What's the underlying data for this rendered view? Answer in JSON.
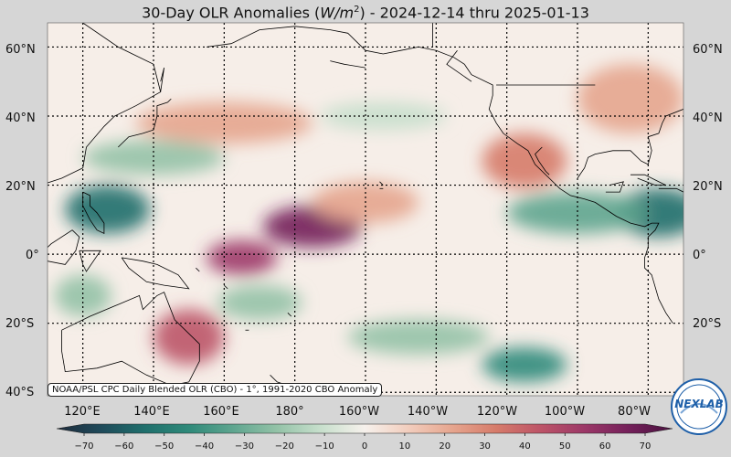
{
  "title": {
    "prefix": "30-Day OLR Anomalies (",
    "unit_base": "W/m",
    "unit_exp": "2",
    "suffix": ") - 2024-12-14 thru 2025-01-13"
  },
  "lat_labels": [
    "60°N",
    "40°N",
    "20°N",
    "0°",
    "20°S",
    "40°S"
  ],
  "lat_labels_right": [
    "60°N",
    "40°N",
    "20°N",
    "0°",
    "20°S"
  ],
  "lon_labels": [
    "120°E",
    "140°E",
    "160°E",
    "180°",
    "160°W",
    "140°W",
    "120°W",
    "100°W",
    "80°W"
  ],
  "source_note": "NOAA/PSL CPC Daily Blended OLR (CBO) - 1°, 1991-2020 CBO Anomaly",
  "logo_text": "NEXLAB",
  "colorbar": {
    "ticks": [
      "−70",
      "−60",
      "−50",
      "−40",
      "−30",
      "−20",
      "−10",
      "0",
      "10",
      "20",
      "30",
      "40",
      "50",
      "60",
      "70"
    ],
    "colors": [
      "#1e2b3c",
      "#1f4a5a",
      "#1f6f6c",
      "#2f8a7a",
      "#5ea58f",
      "#93c2a7",
      "#c7dfcc",
      "#f6f1ec",
      "#f2cdbd",
      "#e6a58e",
      "#d67b6a",
      "#bd5468",
      "#9c3868",
      "#74205a",
      "#4a1240"
    ]
  },
  "anomaly_regions": [
    {
      "lon": 185,
      "lat": 8,
      "rlon": 14,
      "rlat": 6,
      "value": 55
    },
    {
      "lon": 165,
      "lat": -1,
      "rlon": 10,
      "rlat": 5,
      "value": 50
    },
    {
      "lon": 150,
      "lat": -24,
      "rlon": 10,
      "rlat": 8,
      "value": 35
    },
    {
      "lon": 245,
      "lat": 27,
      "rlon": 12,
      "rlat": 8,
      "value": 30
    },
    {
      "lon": 160,
      "lat": 38,
      "rlon": 25,
      "rlat": 6,
      "value": 15
    },
    {
      "lon": 200,
      "lat": 15,
      "rlon": 15,
      "rlat": 6,
      "value": 15
    },
    {
      "lon": 275,
      "lat": 45,
      "rlon": 15,
      "rlat": 10,
      "value": 20
    },
    {
      "lon": 127,
      "lat": 13,
      "rlon": 12,
      "rlat": 7,
      "value": -50
    },
    {
      "lon": 283,
      "lat": 12,
      "rlon": 12,
      "rlat": 7,
      "value": -55
    },
    {
      "lon": 260,
      "lat": 12,
      "rlon": 20,
      "rlat": 6,
      "value": -35
    },
    {
      "lon": 245,
      "lat": -32,
      "rlon": 12,
      "rlat": 5,
      "value": -45
    },
    {
      "lon": 215,
      "lat": -24,
      "rlon": 20,
      "rlat": 5,
      "value": -25
    },
    {
      "lon": 140,
      "lat": 28,
      "rlon": 20,
      "rlat": 5,
      "value": -25
    },
    {
      "lon": 170,
      "lat": -14,
      "rlon": 12,
      "rlat": 5,
      "value": -20
    },
    {
      "lon": 120,
      "lat": -12,
      "rlon": 8,
      "rlat": 6,
      "value": -25
    },
    {
      "lon": 205,
      "lat": 40,
      "rlon": 18,
      "rlat": 4,
      "value": -10
    }
  ]
}
